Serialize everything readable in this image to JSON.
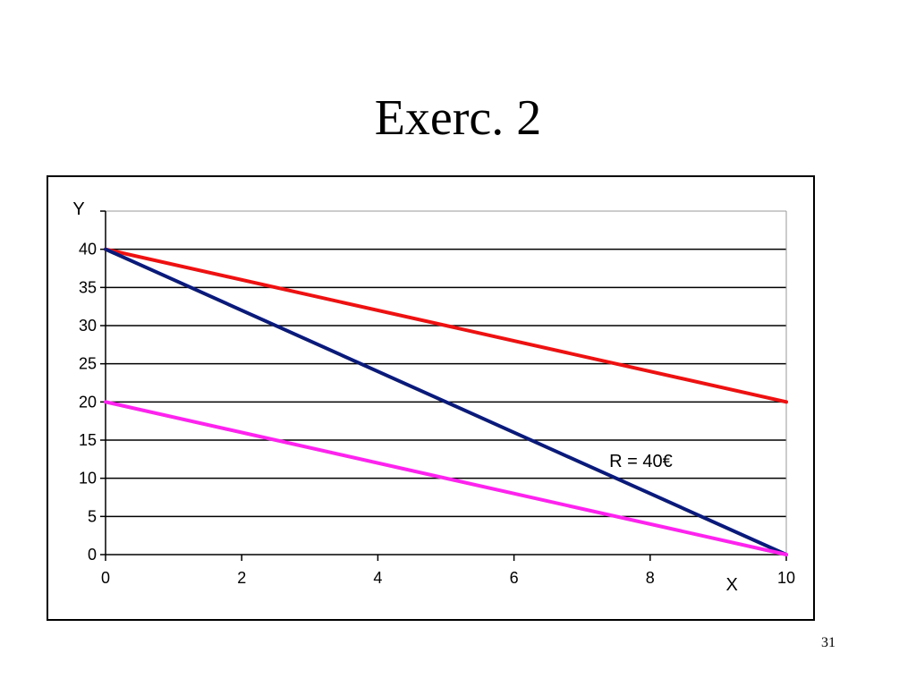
{
  "slide": {
    "title": "Exerc. 2",
    "page_number": "31"
  },
  "chart_data": {
    "type": "line",
    "title": "",
    "xlabel": "X",
    "ylabel": "Y",
    "xlim": [
      0,
      10
    ],
    "ylim": [
      0,
      45
    ],
    "x_ticks": [
      0,
      2,
      4,
      6,
      8,
      10
    ],
    "y_ticks": [
      0,
      5,
      10,
      15,
      20,
      25,
      30,
      35,
      40
    ],
    "grid": "horizontal",
    "series": [
      {
        "color": "#ee1111",
        "x": [
          0,
          10
        ],
        "y": [
          40,
          20
        ]
      },
      {
        "color": "#0a1a7a",
        "x": [
          0,
          10
        ],
        "y": [
          40,
          0
        ]
      },
      {
        "color": "#ff22ee",
        "x": [
          0,
          10
        ],
        "y": [
          20,
          0
        ]
      }
    ],
    "annotations": [
      {
        "text": "R = 40€",
        "x": 7.4,
        "y": 11.5
      }
    ]
  }
}
